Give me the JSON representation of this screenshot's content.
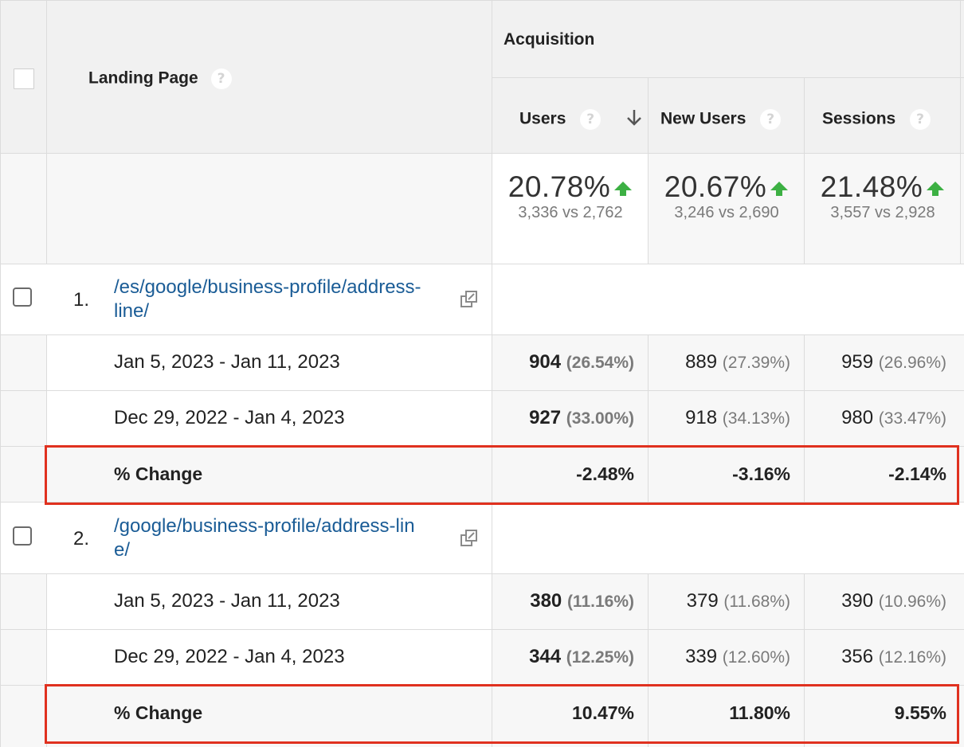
{
  "header": {
    "landing_page": "Landing Page",
    "acquisition": "Acquisition",
    "help_glyph": "?",
    "columns": [
      {
        "label": "Users",
        "sorted": true
      },
      {
        "label": "New Users"
      },
      {
        "label": "Sessions"
      }
    ]
  },
  "totals": [
    {
      "pct": "20.78%",
      "sub": "3,336 vs 2,762"
    },
    {
      "pct": "20.67%",
      "sub": "3,246 vs 2,690"
    },
    {
      "pct": "21.48%",
      "sub": "3,557 vs 2,928"
    }
  ],
  "rows": [
    {
      "index": "1.",
      "link_line1": "/es/google/business-profile/address-",
      "link_line2": "line/",
      "periods": [
        {
          "label": "Jan 5, 2023 - Jan 11, 2023",
          "users": "904",
          "users_pct": "(26.54%)",
          "new_users": "889",
          "new_users_pct": "(27.39%)",
          "sessions": "959",
          "sessions_pct": "(26.96%)"
        },
        {
          "label": "Dec 29, 2022 - Jan 4, 2023",
          "users": "927",
          "users_pct": "(33.00%)",
          "new_users": "918",
          "new_users_pct": "(34.13%)",
          "sessions": "980",
          "sessions_pct": "(33.47%)"
        }
      ],
      "change": {
        "label": "% Change",
        "users": "-2.48%",
        "new_users": "-3.16%",
        "sessions": "-2.14%"
      }
    },
    {
      "index": "2.",
      "link_line1": "/google/business-profile/address-lin",
      "link_line2": "e/",
      "periods": [
        {
          "label": "Jan 5, 2023 - Jan 11, 2023",
          "users": "380",
          "users_pct": "(11.16%)",
          "new_users": "379",
          "new_users_pct": "(11.68%)",
          "sessions": "390",
          "sessions_pct": "(10.96%)"
        },
        {
          "label": "Dec 29, 2022 - Jan 4, 2023",
          "users": "344",
          "users_pct": "(12.25%)",
          "new_users": "339",
          "new_users_pct": "(12.60%)",
          "sessions": "356",
          "sessions_pct": "(12.16%)"
        }
      ],
      "change": {
        "label": "% Change",
        "users": "10.47%",
        "new_users": "11.80%",
        "sessions": "9.55%"
      }
    }
  ],
  "colors": {
    "link": "#1a5c96",
    "up_arrow": "#3cb043",
    "highlight_box": "#e0311f",
    "header_bg": "#f1f1f1"
  }
}
